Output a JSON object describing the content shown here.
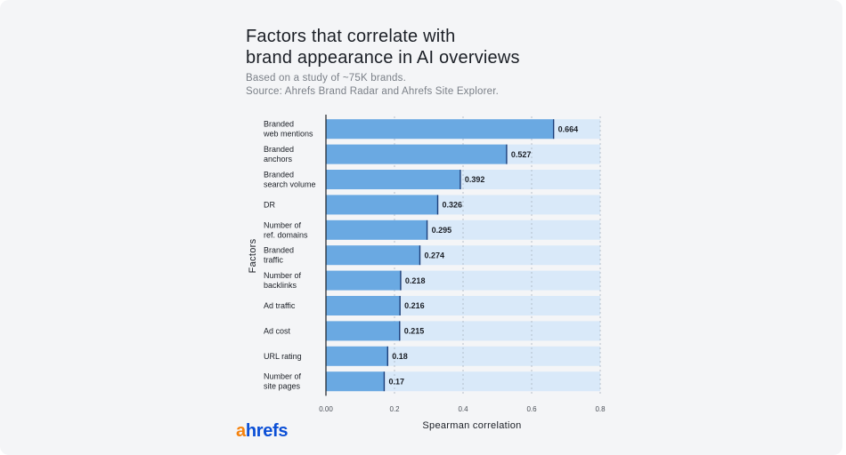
{
  "title_lines": [
    "Factors that correlate with",
    "brand appearance in AI overviews"
  ],
  "subtitle_lines": [
    "Based on a study of ~75K brands.",
    "Source: Ahrefs Brand Radar and Ahrefs Site Explorer."
  ],
  "logo": {
    "first": "a",
    "rest": "hrefs"
  },
  "colors": {
    "bar": "#6aa9e2",
    "track": "#d9e9f9",
    "bar_end": "#1d3f7a",
    "axis": "#1b1f26"
  },
  "chart_data": {
    "type": "bar",
    "orientation": "horizontal",
    "categories": [
      [
        "Branded",
        "web mentions"
      ],
      [
        "Branded",
        "anchors"
      ],
      [
        "Branded",
        "search volume"
      ],
      [
        "DR"
      ],
      [
        "Number of",
        "ref. domains"
      ],
      [
        "Branded",
        "traffic"
      ],
      [
        "Number of",
        "backlinks"
      ],
      [
        "Ad traffic"
      ],
      [
        "Ad cost"
      ],
      [
        "URL rating"
      ],
      [
        "Number of",
        "site pages"
      ]
    ],
    "values": [
      0.664,
      0.527,
      0.392,
      0.326,
      0.295,
      0.274,
      0.218,
      0.216,
      0.215,
      0.18,
      0.17
    ],
    "value_labels": [
      "0.664",
      "0.527",
      "0.392",
      "0.326",
      "0.295",
      "0.274",
      "0.218",
      "0.216",
      "0.215",
      "0.18",
      "0.17"
    ],
    "xlabel": "Spearman correlation",
    "ylabel": "Factors",
    "xlim": [
      0,
      0.8
    ],
    "xticks": [
      "0.00",
      "0.2",
      "0.4",
      "0.6",
      "0.8"
    ],
    "grid": true
  }
}
